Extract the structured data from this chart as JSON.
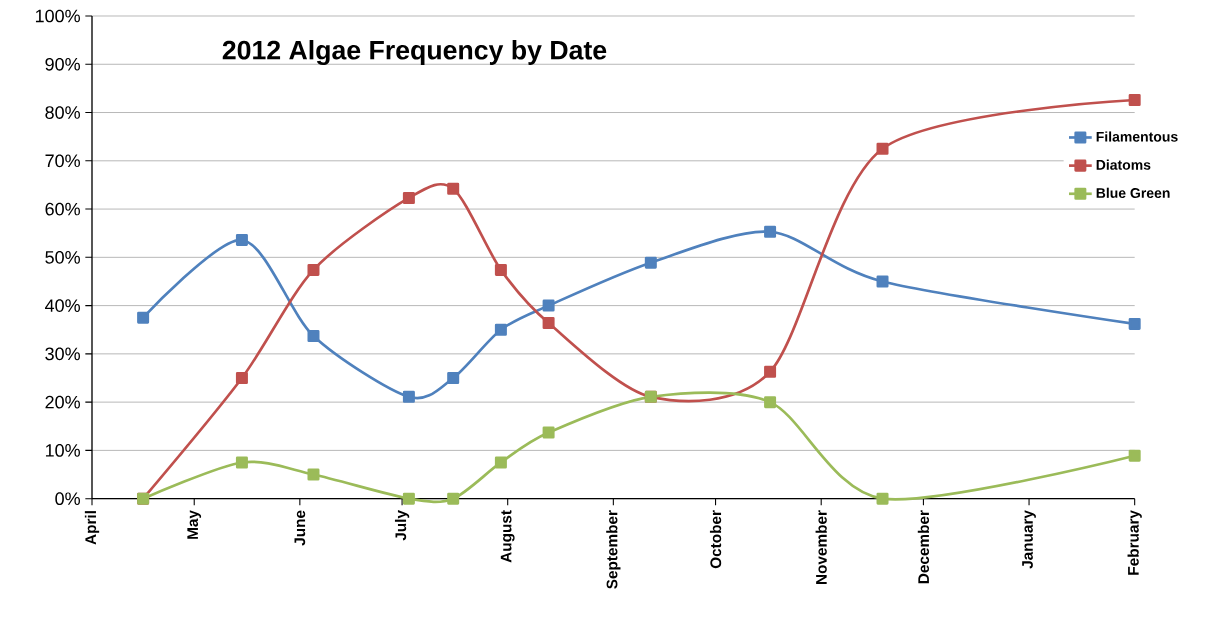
{
  "chart_data": {
    "type": "line",
    "title": "2012 Algae Frequency by Date",
    "x": [
      "2012-04-16",
      "2012-05-15",
      "2012-06-05",
      "2012-07-03",
      "2012-07-16",
      "2012-07-30",
      "2012-08-13",
      "2012-09-12",
      "2012-10-17",
      "2012-11-19",
      "2013-02-01"
    ],
    "series": [
      {
        "name": "Filamentous",
        "color": "#4f81bd",
        "values": [
          37.5,
          53.6,
          33.7,
          21.1,
          25,
          35,
          40,
          48.9,
          55.3,
          45,
          36.2
        ]
      },
      {
        "name": "Diatoms",
        "color": "#c0504d",
        "values": [
          0,
          25,
          47.4,
          62.3,
          64.2,
          47.4,
          36.4,
          21.1,
          26.3,
          72.5,
          82.6
        ]
      },
      {
        "name": "Blue Green",
        "color": "#9bbb59",
        "values": [
          0,
          7.5,
          5,
          0,
          0,
          7.5,
          13.7,
          21.1,
          20,
          0,
          8.9
        ]
      }
    ],
    "xlim": [
      "2012-04-01",
      "2013-02-01"
    ],
    "xticks": [
      {
        "value": "2012-04-01",
        "label": "April"
      },
      {
        "value": "2012-05-01",
        "label": "May"
      },
      {
        "value": "2012-06-01",
        "label": "June"
      },
      {
        "value": "2012-07-01",
        "label": "July"
      },
      {
        "value": "2012-08-01",
        "label": "August"
      },
      {
        "value": "2012-09-01",
        "label": "September"
      },
      {
        "value": "2012-10-01",
        "label": "October"
      },
      {
        "value": "2012-11-01",
        "label": "November"
      },
      {
        "value": "2012-12-01",
        "label": "December"
      },
      {
        "value": "2013-01-01",
        "label": "January"
      },
      {
        "value": "2013-02-01",
        "label": "February"
      }
    ],
    "ylim": [
      0,
      100
    ],
    "yticks": [
      {
        "value": 0,
        "label": "0%"
      },
      {
        "value": 10,
        "label": "10%"
      },
      {
        "value": 20,
        "label": "20%"
      },
      {
        "value": 30,
        "label": "30%"
      },
      {
        "value": 40,
        "label": "40%"
      },
      {
        "value": 50,
        "label": "50%"
      },
      {
        "value": 60,
        "label": "60%"
      },
      {
        "value": 70,
        "label": "70%"
      },
      {
        "value": 80,
        "label": "80%"
      },
      {
        "value": 90,
        "label": "90%"
      },
      {
        "value": 100,
        "label": "100%"
      }
    ],
    "grid": "y",
    "legend": "right",
    "marker": "square",
    "line_style": "solid"
  }
}
